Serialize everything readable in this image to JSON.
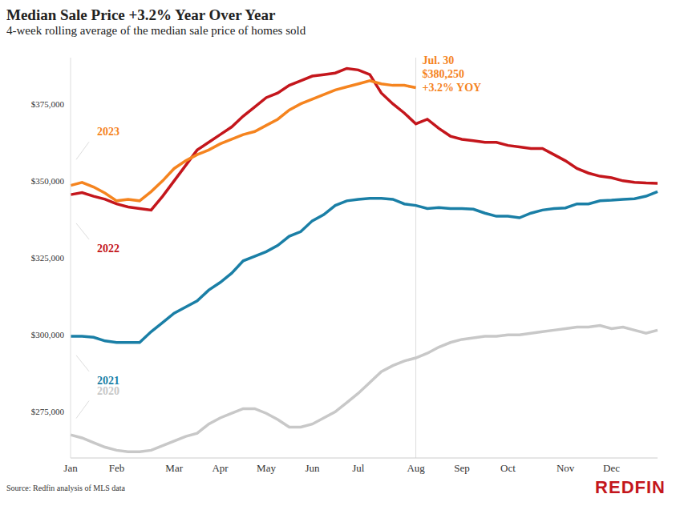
{
  "chart_data": {
    "type": "line",
    "title": "Median Sale Price +3.2% Year Over Year",
    "subtitle": "4-week rolling average of the median sale price of homes sold",
    "categories": [
      "Jan",
      null,
      null,
      null,
      "Feb",
      null,
      null,
      null,
      null,
      "Mar",
      null,
      null,
      null,
      "Apr",
      null,
      null,
      null,
      "May",
      null,
      null,
      null,
      "Jun",
      null,
      null,
      null,
      "Jul",
      null,
      null,
      null,
      null,
      "Aug",
      null,
      null,
      null,
      "Sep",
      null,
      null,
      null,
      "Oct",
      null,
      null,
      null,
      null,
      "Nov",
      null,
      null,
      null,
      "Dec",
      null,
      null,
      null,
      null
    ],
    "series": [
      {
        "name": "2023",
        "color": "#f5841f",
        "values": [
          348500,
          349500,
          348000,
          346000,
          343500,
          344000,
          343500,
          346500,
          350000,
          354000,
          356500,
          358500,
          360000,
          362000,
          363500,
          365000,
          366000,
          368000,
          370000,
          373000,
          375000,
          376500,
          378000,
          379500,
          380500,
          381500,
          382500,
          381500,
          381000,
          381000,
          380250,
          null,
          null,
          null,
          null,
          null,
          null,
          null,
          null,
          null,
          null,
          null,
          null,
          null,
          null,
          null,
          null,
          null,
          null,
          null,
          null,
          null
        ]
      },
      {
        "name": "2022",
        "color": "#c4161c",
        "values": [
          345500,
          346200,
          345000,
          344000,
          342500,
          341500,
          341000,
          340500,
          345000,
          350000,
          355000,
          360000,
          362500,
          365000,
          367500,
          371000,
          374000,
          377000,
          378500,
          381000,
          382500,
          384000,
          384500,
          385000,
          386500,
          386000,
          384500,
          378500,
          375000,
          372000,
          368500,
          370000,
          367000,
          364500,
          363500,
          363000,
          362500,
          362500,
          361500,
          361000,
          360500,
          360500,
          358500,
          356500,
          354000,
          352500,
          351500,
          351000,
          350000,
          349500,
          349300,
          349200
        ]
      },
      {
        "name": "2021",
        "color": "#1a7fa6",
        "values": [
          299500,
          299500,
          299200,
          298000,
          297500,
          297500,
          297500,
          301000,
          304000,
          307000,
          309000,
          311000,
          314500,
          317000,
          320000,
          324000,
          325500,
          327000,
          329000,
          332000,
          333500,
          337000,
          339000,
          342000,
          343500,
          344000,
          344300,
          344300,
          344000,
          342500,
          342000,
          341000,
          341300,
          341000,
          341000,
          340800,
          339500,
          338500,
          338500,
          338000,
          339500,
          340500,
          341000,
          341200,
          342500,
          342500,
          343500,
          343700,
          344000,
          344200,
          345000,
          346500
        ]
      },
      {
        "name": "2020",
        "color": "#c8c8c8",
        "values": [
          267500,
          266500,
          265000,
          263500,
          262500,
          262000,
          262000,
          262500,
          264000,
          265500,
          267000,
          268000,
          271000,
          273000,
          274500,
          276000,
          276000,
          274500,
          272500,
          270000,
          270000,
          271000,
          273000,
          275000,
          278000,
          281000,
          284500,
          288000,
          290000,
          291500,
          292500,
          294000,
          296000,
          297500,
          298500,
          299000,
          299500,
          299500,
          300000,
          300000,
          300500,
          301000,
          301500,
          302000,
          302500,
          302500,
          303000,
          302000,
          302500,
          301500,
          300500,
          301500
        ]
      }
    ],
    "ylim": [
      260000,
      390000
    ],
    "yticks": [
      {
        "value": 275000,
        "label": "$275,000"
      },
      {
        "value": 300000,
        "label": "$300,000"
      },
      {
        "value": 325000,
        "label": "$325,000"
      },
      {
        "value": 350000,
        "label": "$350,000"
      },
      {
        "value": 375000,
        "label": "$375,000"
      }
    ],
    "grid": false,
    "annotation": {
      "x": 30,
      "text": [
        "Jul. 30",
        "$380,250",
        "+3.2% YOY"
      ],
      "color": "#f5841f"
    },
    "source": "Source: Redfin analysis of MLS data",
    "logo": "REDFIN"
  }
}
